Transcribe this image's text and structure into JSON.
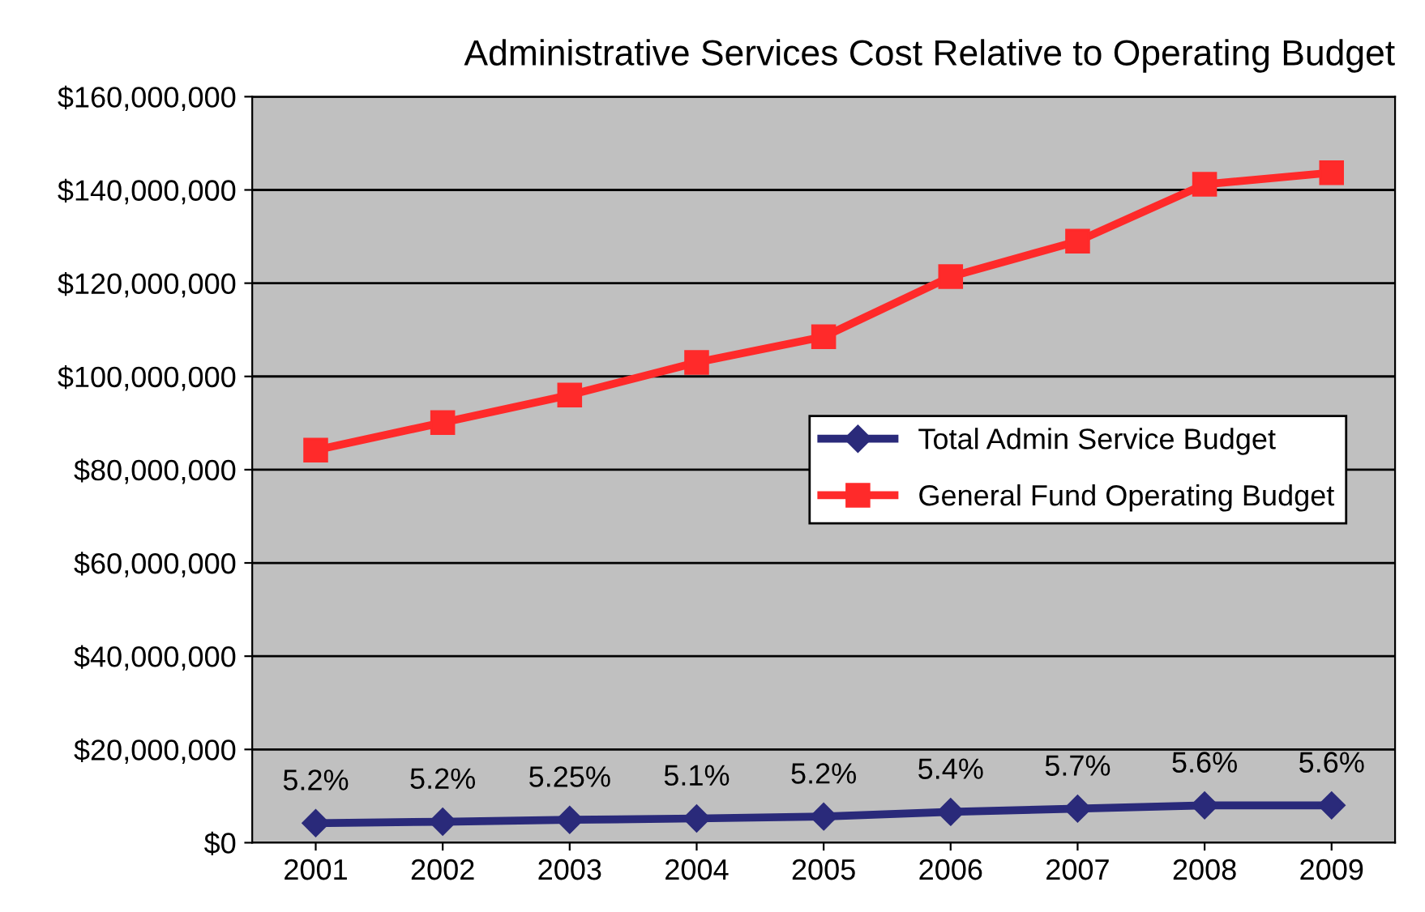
{
  "chart_data": {
    "type": "line",
    "title": "Administrative Services Cost Relative to Operating Budget",
    "categories": [
      "2001",
      "2002",
      "2003",
      "2004",
      "2005",
      "2006",
      "2007",
      "2008",
      "2009"
    ],
    "series": [
      {
        "name": "Total Admin Service Budget",
        "color": "#2a2a7a",
        "marker": "diamond",
        "values": [
          4200000,
          4500000,
          4900000,
          5200000,
          5600000,
          6600000,
          7300000,
          8000000,
          8000000
        ]
      },
      {
        "name": "General Fund Operating Budget",
        "color": "#ff2a2a",
        "marker": "square",
        "values": [
          84200000,
          90100000,
          96000000,
          103000000,
          108500000,
          121400000,
          129000000,
          141200000,
          143700000
        ]
      }
    ],
    "ylim": [
      0,
      160000000
    ],
    "yticks": [
      {
        "value": 0,
        "label": "$0"
      },
      {
        "value": 20000000,
        "label": "$20,000,000"
      },
      {
        "value": 40000000,
        "label": "$40,000,000"
      },
      {
        "value": 60000000,
        "label": "$60,000,000"
      },
      {
        "value": 80000000,
        "label": "$80,000,000"
      },
      {
        "value": 100000000,
        "label": "$100,000,000"
      },
      {
        "value": 120000000,
        "label": "$120,000,000"
      },
      {
        "value": 140000000,
        "label": "$140,000,000"
      },
      {
        "value": 160000000,
        "label": "$160,000,000"
      }
    ],
    "annotations": [
      {
        "text": "5.2%",
        "x": "2001",
        "y": 4200000
      },
      {
        "text": "5.2%",
        "x": "2002",
        "y": 4500000
      },
      {
        "text": "5.25%",
        "x": "2003",
        "y": 4900000
      },
      {
        "text": "5.1%",
        "x": "2004",
        "y": 5200000
      },
      {
        "text": "5.2%",
        "x": "2005",
        "y": 5600000
      },
      {
        "text": "5.4%",
        "x": "2006",
        "y": 6600000
      },
      {
        "text": "5.7%",
        "x": "2007",
        "y": 7300000
      },
      {
        "text": "5.6%",
        "x": "2008",
        "y": 8000000
      },
      {
        "text": "5.6%",
        "x": "2009",
        "y": 8000000
      }
    ],
    "grid": "y",
    "legend": "right"
  }
}
